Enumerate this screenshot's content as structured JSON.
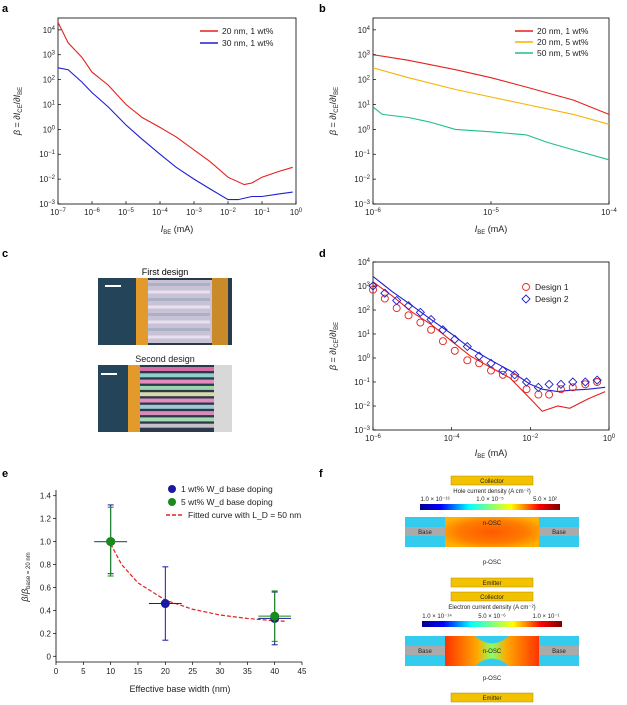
{
  "panels": {
    "a": {
      "letter": "a",
      "ylabel": "β = ∂I_CE/∂I_BE",
      "xlabel": "I_BE (mA)",
      "x_ticks": [
        "10^-7",
        "10^-6",
        "10^-5",
        "10^-4",
        "10^-3",
        "10^-2",
        "10^-1",
        "10^0"
      ],
      "y_ticks": [
        "10^-3",
        "10^-2",
        "10^-1",
        "10^0",
        "10^1",
        "10^2",
        "10^3",
        "10^4"
      ]
    },
    "b": {
      "letter": "b",
      "ylabel": "β = ∂I_CE/∂I_BE",
      "xlabel": "I_BE (mA)",
      "x_ticks": [
        "10^-6",
        "10^-5",
        "10^-4"
      ],
      "y_ticks": [
        "10^-3",
        "10^-2",
        "10^-1",
        "10^0",
        "10^1",
        "10^2",
        "10^3",
        "10^4"
      ]
    },
    "c": {
      "letter": "c",
      "first_label": "First design",
      "second_label": "Second design"
    },
    "d": {
      "letter": "d",
      "ylabel": "β = ∂I_CE/∂I_BE",
      "xlabel": "I_BE (mA)",
      "x_ticks": [
        "10^-6",
        "10^-4",
        "10^-2",
        "10^0"
      ],
      "y_ticks": [
        "10^-3",
        "10^-2",
        "10^-1",
        "10^0",
        "10^1",
        "10^2",
        "10^3",
        "10^4"
      ]
    },
    "e": {
      "letter": "e",
      "ylabel": "β/β_base = 20 nm",
      "xlabel": "Effective base width (nm)",
      "x_ticks": [
        "0",
        "5",
        "10",
        "15",
        "20",
        "25",
        "30",
        "35",
        "40",
        "45"
      ],
      "y_ticks": [
        "0",
        "0.2",
        "0.4",
        "0.6",
        "0.8",
        "1.0",
        "1.2",
        "1.4"
      ]
    },
    "f": {
      "letter": "f",
      "collector_label": "Collector",
      "emitter_label": "Emitter",
      "base_label": "Base",
      "nosc_label": "n-OSC",
      "posc_label": "p-OSC",
      "hole_title": "Hole current density (A cm⁻²)",
      "hole_scale": [
        "1.0 × 10⁻¹³",
        "1.0 × 10⁻⁵",
        "5.0 × 10²"
      ],
      "electron_title": "Electron current density (A cm⁻²)",
      "electron_scale": [
        "1.0 × 10⁻¹⁴",
        "5.0 × 10⁻⁶",
        "1.0 × 10⁻¹"
      ]
    }
  },
  "chart_data": [
    {
      "panel": "a",
      "type": "line",
      "xscale": "log",
      "yscale": "log",
      "xlim": [
        1e-07,
        1
      ],
      "ylim": [
        0.001,
        30000
      ],
      "legend": "top-right",
      "series": [
        {
          "name": "20 nm, 1 wt%",
          "color": "#e4211c",
          "x": [
            1e-07,
            2e-07,
            5e-07,
            1e-06,
            3e-06,
            1e-05,
            3e-05,
            0.0001,
            0.0003,
            0.001,
            0.003,
            0.01,
            0.03,
            0.05,
            0.1,
            0.3,
            0.8
          ],
          "y": [
            20000,
            3000,
            800,
            200,
            60,
            10,
            3,
            1.2,
            0.5,
            0.15,
            0.05,
            0.012,
            0.006,
            0.007,
            0.012,
            0.02,
            0.03
          ]
        },
        {
          "name": "30 nm, 1 wt%",
          "color": "#1f1fd0",
          "x": [
            1e-07,
            2e-07,
            5e-07,
            1e-06,
            3e-06,
            1e-05,
            3e-05,
            0.0001,
            0.0003,
            0.001,
            0.003,
            0.01,
            0.02,
            0.05,
            0.1,
            0.3,
            0.8
          ],
          "y": [
            300,
            250,
            80,
            30,
            8,
            1.5,
            0.4,
            0.1,
            0.03,
            0.01,
            0.004,
            0.0015,
            0.0015,
            0.002,
            0.002,
            0.0025,
            0.003
          ]
        }
      ]
    },
    {
      "panel": "b",
      "type": "line",
      "xscale": "log",
      "yscale": "log",
      "xlim": [
        1e-06,
        0.0001
      ],
      "ylim": [
        0.001,
        30000
      ],
      "legend": "top-right",
      "series": [
        {
          "name": "20 nm, 1 wt%",
          "color": "#e4211c",
          "x": [
            1e-06,
            2e-06,
            5e-06,
            1e-05,
            2e-05,
            5e-05,
            0.0001
          ],
          "y": [
            1000,
            600,
            250,
            120,
            50,
            15,
            4
          ]
        },
        {
          "name": "20 nm, 5 wt%",
          "color": "#f4b400",
          "x": [
            1e-06,
            2e-06,
            5e-06,
            1e-05,
            2e-05,
            5e-05,
            0.0001
          ],
          "y": [
            300,
            120,
            40,
            20,
            10,
            4,
            1.6
          ]
        },
        {
          "name": "50 nm, 5 wt%",
          "color": "#1dbf8a",
          "x": [
            1e-06,
            1.2e-06,
            2e-06,
            3e-06,
            5e-06,
            1e-05,
            2e-05,
            3e-05,
            5e-05,
            0.0001
          ],
          "y": [
            8,
            4,
            3,
            2,
            1,
            0.8,
            0.6,
            0.3,
            0.15,
            0.06
          ]
        }
      ]
    },
    {
      "panel": "d",
      "type": "scatter",
      "xscale": "log",
      "yscale": "log",
      "xlim": [
        1e-06,
        1
      ],
      "ylim": [
        0.001,
        10000
      ],
      "legend": "top-right",
      "series": [
        {
          "name": "Design 1",
          "color": "#e4211c",
          "marker": "circle",
          "x": [
            1e-06,
            2e-06,
            4e-06,
            8e-06,
            1.6e-05,
            3e-05,
            6e-05,
            0.00012,
            0.00025,
            0.0005,
            0.001,
            0.002,
            0.004,
            0.008,
            0.016,
            0.03,
            0.06,
            0.12,
            0.25,
            0.5
          ],
          "y": [
            700,
            300,
            120,
            60,
            30,
            15,
            5,
            2,
            0.8,
            0.6,
            0.3,
            0.2,
            0.15,
            0.05,
            0.03,
            0.03,
            0.05,
            0.06,
            0.08,
            0.1
          ]
        },
        {
          "name": "Design 2",
          "color": "#1f1fd0",
          "marker": "diamond",
          "x": [
            1e-06,
            2e-06,
            4e-06,
            8e-06,
            1.6e-05,
            3e-05,
            6e-05,
            0.00012,
            0.00025,
            0.0005,
            0.001,
            0.002,
            0.004,
            0.008,
            0.016,
            0.03,
            0.06,
            0.12,
            0.25,
            0.5
          ],
          "y": [
            1000,
            500,
            250,
            150,
            80,
            40,
            15,
            6,
            3,
            1.2,
            0.6,
            0.3,
            0.2,
            0.1,
            0.06,
            0.08,
            0.08,
            0.1,
            0.1,
            0.12
          ]
        },
        {
          "name": "Design 1 fit",
          "color": "#e4211c",
          "marker": "line",
          "x": [
            1e-06,
            3e-06,
            1e-05,
            3e-05,
            0.0001,
            0.0003,
            0.001,
            0.003,
            0.01,
            0.02,
            0.05,
            0.1,
            0.3,
            0.8
          ],
          "y": [
            1500,
            400,
            80,
            25,
            5,
            1.2,
            0.4,
            0.15,
            0.02,
            0.006,
            0.01,
            0.008,
            0.02,
            0.04
          ]
        },
        {
          "name": "Design 2 fit",
          "color": "#1f1fd0",
          "marker": "line",
          "x": [
            1e-06,
            3e-06,
            1e-05,
            3e-05,
            0.0001,
            0.0003,
            0.001,
            0.003,
            0.01,
            0.02,
            0.05,
            0.1,
            0.3,
            0.8
          ],
          "y": [
            2500,
            600,
            150,
            40,
            10,
            2.5,
            0.8,
            0.3,
            0.08,
            0.05,
            0.04,
            0.045,
            0.05,
            0.06
          ]
        }
      ]
    },
    {
      "panel": "e",
      "type": "scatter",
      "xlim": [
        0,
        45
      ],
      "ylim": [
        -0.05,
        1.45
      ],
      "legend": "top-right",
      "series": [
        {
          "name": "1 wt% W_d base doping",
          "color": "#1a1aa0",
          "points": [
            {
              "x": 10,
              "y": 1.0,
              "yerr_low": 0.28,
              "yerr_high": 0.32,
              "xerr": 3
            },
            {
              "x": 20,
              "y": 0.46,
              "yerr_low": 0.32,
              "yerr_high": 0.32,
              "xerr": 3
            },
            {
              "x": 40,
              "y": 0.33,
              "yerr_low": 0.23,
              "yerr_high": 0.23,
              "xerr": 3
            }
          ]
        },
        {
          "name": "5 wt% W_d base doping",
          "color": "#1a8a1a",
          "points": [
            {
              "x": 10,
              "y": 1.0,
              "yerr_low": 0.3,
              "yerr_high": 0.3,
              "xerr": 3
            },
            {
              "x": 40,
              "y": 0.35,
              "yerr_low": 0.22,
              "yerr_high": 0.22,
              "xerr": 3
            }
          ]
        },
        {
          "name": "Fitted curve with L_D = 50 nm",
          "color": "#e4211c",
          "dashed": true,
          "x": [
            10,
            12,
            15,
            20,
            25,
            30,
            35,
            40,
            42
          ],
          "y": [
            0.98,
            0.8,
            0.64,
            0.49,
            0.41,
            0.36,
            0.33,
            0.31,
            0.305
          ]
        }
      ]
    }
  ]
}
